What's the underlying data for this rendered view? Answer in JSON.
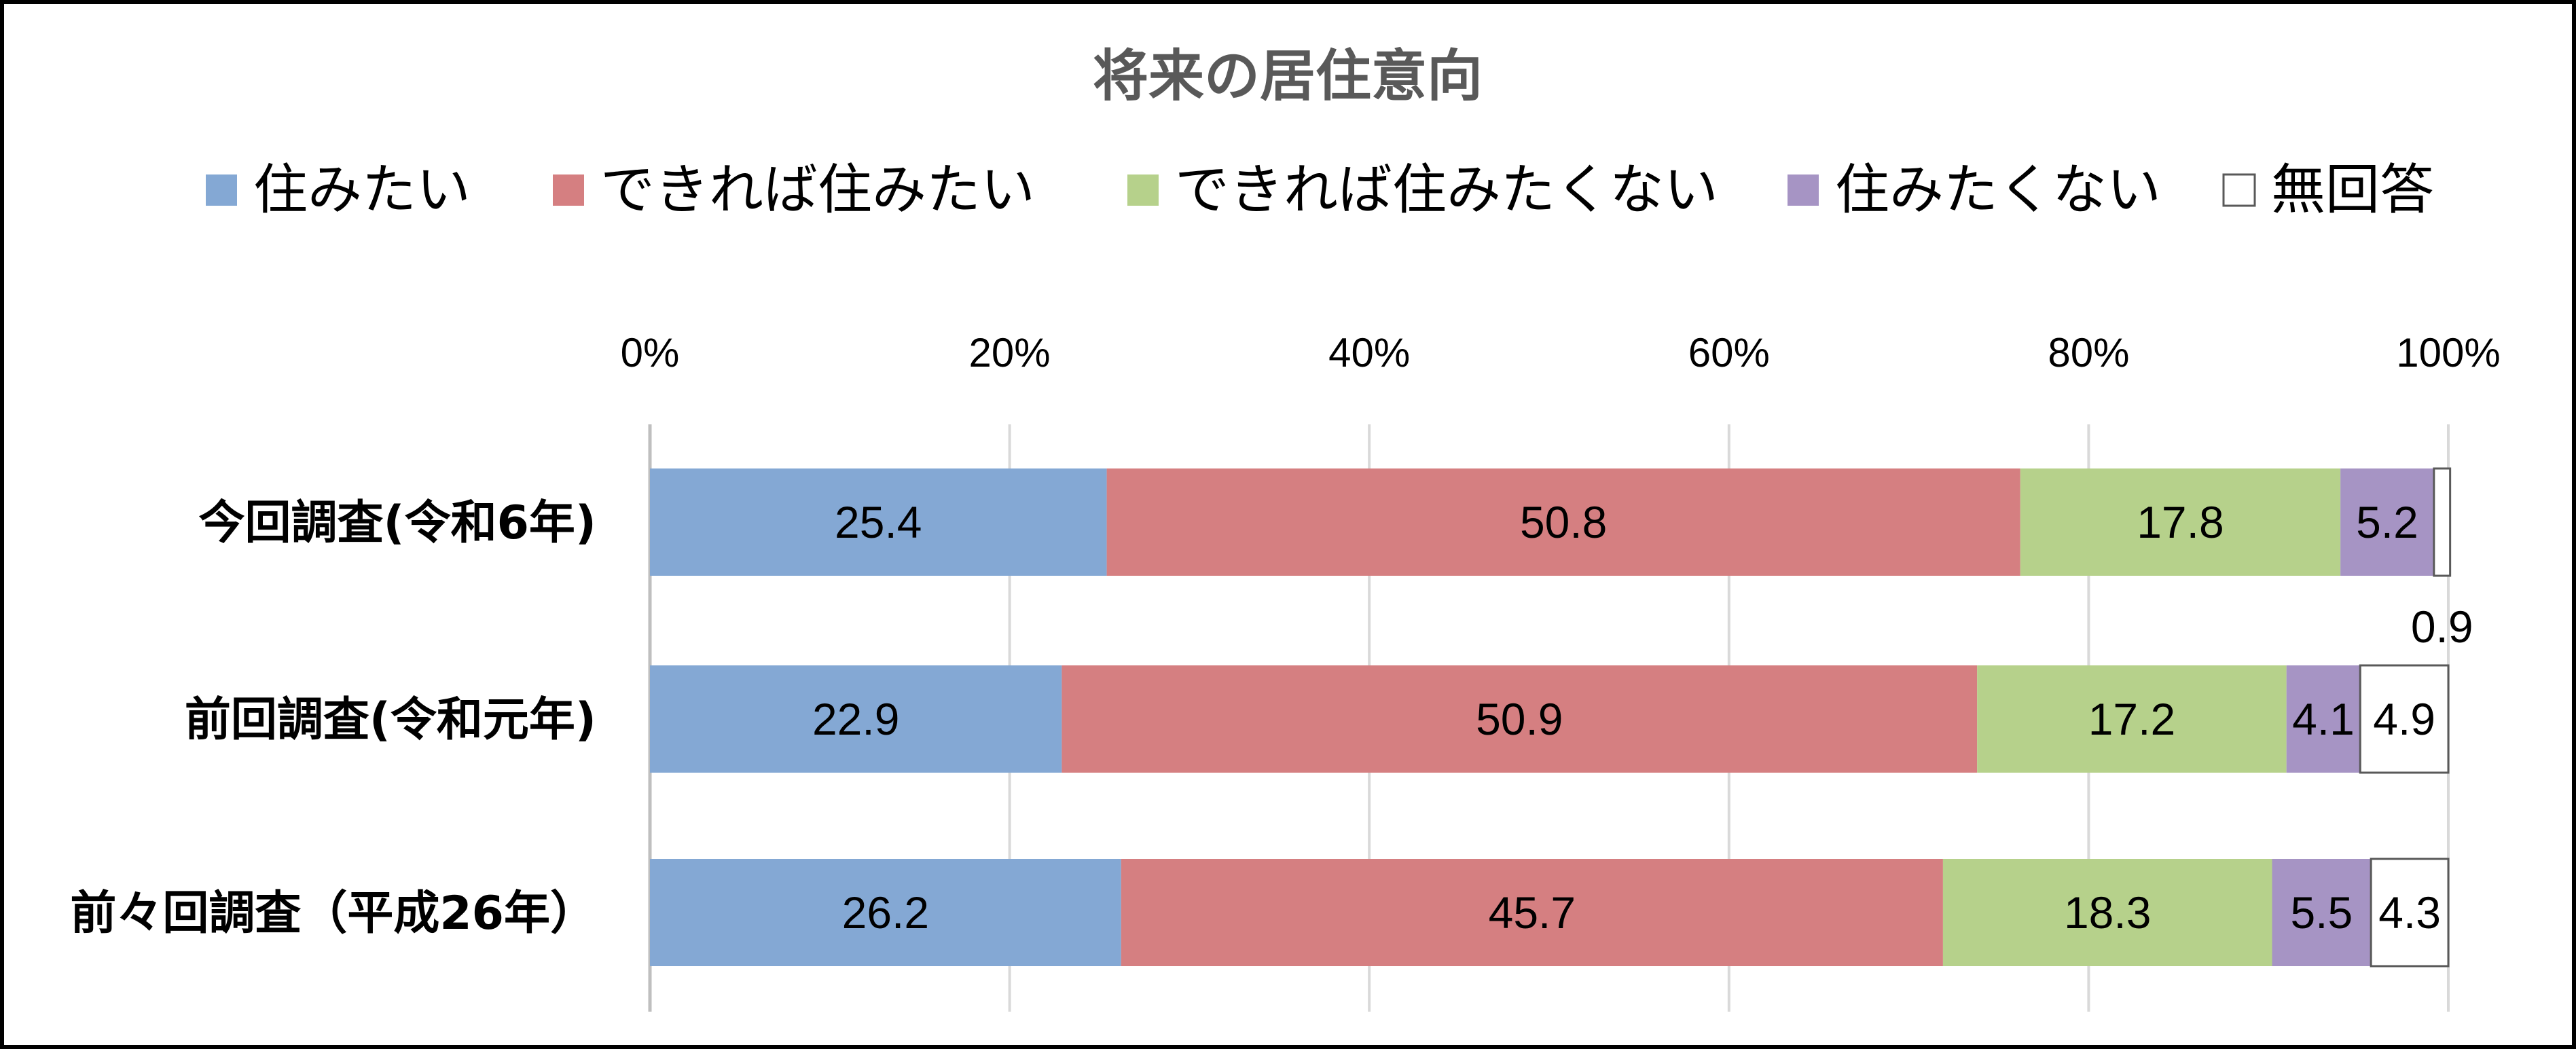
{
  "chart_data": {
    "type": "bar",
    "orientation": "horizontal",
    "stacked": true,
    "title": "将来の居住意向",
    "categories": [
      "今回調査(令和6年)",
      "前回調査(令和元年)",
      "前々回調査（平成26年）"
    ],
    "series": [
      {
        "name": "住みたい",
        "color": "#84a8d4",
        "values": [
          25.4,
          22.9,
          26.2
        ]
      },
      {
        "name": "できれば住みたい",
        "color": "#d57f81",
        "values": [
          50.8,
          50.9,
          45.7
        ]
      },
      {
        "name": "できれば住みたくない",
        "color": "#b6d18b",
        "values": [
          17.8,
          17.2,
          18.3
        ]
      },
      {
        "name": "住みたくない",
        "color": "#a694c4",
        "values": [
          5.2,
          4.1,
          5.5
        ]
      },
      {
        "name": "無回答",
        "color": "#ffffff",
        "values": [
          0.9,
          4.9,
          4.3
        ]
      }
    ],
    "xaxis": {
      "position": "top",
      "range": [
        0,
        100
      ],
      "ticks": [
        0,
        20,
        40,
        60,
        80,
        100
      ],
      "tick_labels": [
        "0%",
        "20%",
        "40%",
        "60%",
        "80%",
        "100%"
      ]
    },
    "grid": true,
    "legend_position": "top",
    "data_label_colors": {
      "default": "#000000"
    }
  }
}
